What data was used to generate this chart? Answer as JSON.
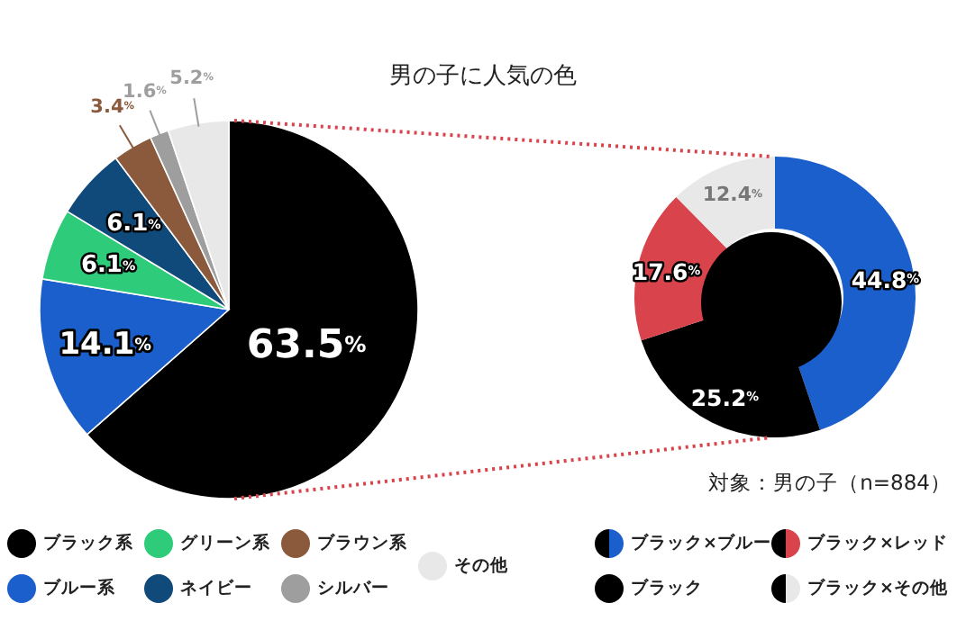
{
  "chart_data": [
    {
      "type": "pie",
      "title": "男の子に人気の色",
      "categories": [
        "ブラック系",
        "ブルー系",
        "グリーン系",
        "ネイビー",
        "ブラウン系",
        "シルバー",
        "その他"
      ],
      "values": [
        63.5,
        14.1,
        6.1,
        6.1,
        3.4,
        1.6,
        5.2
      ],
      "value_labels": [
        "63.5%",
        "14.1%",
        "6.1%",
        "6.1%",
        "3.4%",
        "1.6%",
        "5.2%"
      ],
      "colors": [
        "#000000",
        "#1a5fcc",
        "#2ecc7a",
        "#0f4a7a",
        "#8b5a3c",
        "#9e9e9e",
        "#e8e8e8"
      ],
      "legend": "bottom"
    },
    {
      "type": "donut",
      "categories": [
        "ブラック×ブルー",
        "ブラック",
        "ブラック×レッド",
        "ブラック×その他"
      ],
      "values": [
        44.8,
        25.2,
        17.6,
        12.4
      ],
      "value_labels": [
        "44.8%",
        "25.2%",
        "17.6%",
        "12.4%"
      ],
      "colors": [
        "#1a5fcc",
        "#000000",
        "#d9434b",
        "#e8e8e8"
      ],
      "legend": "bottom",
      "annotations": [
        "対象：男の子（n=884）"
      ]
    }
  ]
}
